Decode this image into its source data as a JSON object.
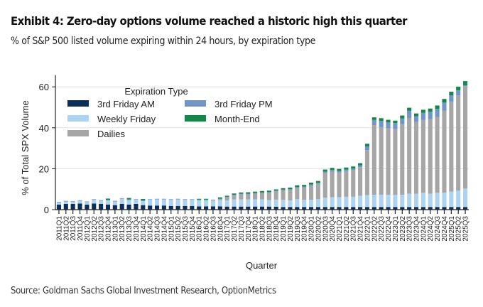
{
  "header": {
    "title": "Exhibit 4: Zero-day options volume reached a historic high this quarter",
    "subtitle": "% of S&P 500 listed volume expiring within 24 hours, by expiration type"
  },
  "footer": {
    "source": "Source: Goldman Sachs Global Investment Research, OptionMetrics"
  },
  "chart_data": {
    "type": "bar",
    "stacked": true,
    "title": "",
    "xlabel": "Quarter",
    "ylabel": "% of Total SPX Volume",
    "ylim": [
      0,
      65
    ],
    "yticks": [
      0,
      20,
      40,
      60
    ],
    "grid": true,
    "legend": {
      "title": "Expiration Type",
      "placement": "top-left"
    },
    "colors": {
      "3rd Friday AM": "#0b2f5b",
      "3rd Friday PM": "#6f96c6",
      "Weekly Friday": "#aed3f0",
      "Dailies": "#a6a6a6",
      "Month-End": "#17864a"
    },
    "categories": [
      "2011Q1",
      "2011Q2",
      "2011Q3",
      "2011Q4",
      "2012Q1",
      "2012Q2",
      "2012Q3",
      "2012Q4",
      "2013Q1",
      "2013Q2",
      "2013Q3",
      "2013Q4",
      "2014Q1",
      "2014Q2",
      "2014Q3",
      "2014Q4",
      "2015Q1",
      "2015Q2",
      "2015Q3",
      "2015Q4",
      "2016Q1",
      "2016Q2",
      "2016Q3",
      "2016Q4",
      "2017Q1",
      "2017Q2",
      "2017Q3",
      "2017Q4",
      "2018Q1",
      "2018Q2",
      "2018Q3",
      "2018Q4",
      "2019Q1",
      "2019Q2",
      "2019Q3",
      "2019Q4",
      "2020Q1",
      "2020Q2",
      "2020Q3",
      "2020Q4",
      "2021Q1",
      "2021Q2",
      "2021Q3",
      "2021Q4",
      "2022Q1",
      "2022Q2",
      "2022Q3",
      "2022Q4",
      "2023Q1",
      "2023Q2",
      "2023Q3",
      "2023Q4",
      "2024Q1",
      "2024Q2",
      "2024Q3",
      "2024Q4",
      "2025Q1",
      "2025Q2",
      "2025Q3"
    ],
    "series": [
      {
        "name": "3rd Friday AM",
        "values": [
          2.5,
          2.8,
          2.8,
          3.0,
          2.5,
          3.0,
          2.8,
          2.5,
          2.2,
          2.8,
          2.5,
          2.8,
          2.2,
          2.0,
          2.0,
          2.0,
          1.8,
          1.8,
          1.8,
          1.8,
          1.6,
          1.6,
          1.6,
          1.6,
          1.5,
          1.5,
          1.5,
          1.5,
          1.5,
          1.5,
          1.5,
          1.4,
          1.3,
          1.3,
          1.3,
          1.3,
          1.3,
          1.3,
          1.3,
          1.3,
          1.3,
          1.3,
          1.3,
          1.3,
          1.3,
          1.3,
          1.3,
          1.3,
          1.3,
          1.3,
          1.3,
          1.3,
          1.3,
          1.3,
          1.3,
          1.3,
          1.3,
          1.3,
          1.3
        ]
      },
      {
        "name": "Weekly Friday",
        "values": [
          1.0,
          1.2,
          1.0,
          1.3,
          1.2,
          1.8,
          1.5,
          2.0,
          1.8,
          2.5,
          2.2,
          2.0,
          2.0,
          2.8,
          3.0,
          3.0,
          3.0,
          3.2,
          3.0,
          3.0,
          3.0,
          3.0,
          2.8,
          3.0,
          3.0,
          3.5,
          3.5,
          3.5,
          3.5,
          3.5,
          3.2,
          3.5,
          3.5,
          3.2,
          3.8,
          3.5,
          3.5,
          3.8,
          4.5,
          4.8,
          4.8,
          5.0,
          5.0,
          5.5,
          5.8,
          6.0,
          6.0,
          6.0,
          6.0,
          6.0,
          6.5,
          6.5,
          7.0,
          6.5,
          7.0,
          7.0,
          7.5,
          8.0,
          9.0
        ]
      },
      {
        "name": "Dailies",
        "values": [
          0.0,
          0.0,
          0.0,
          0.0,
          0.0,
          0.0,
          0.0,
          0.0,
          0.0,
          0.0,
          0.0,
          0.0,
          0.0,
          0.0,
          0.0,
          0.0,
          0.0,
          0.0,
          0.0,
          0.0,
          0.0,
          0.0,
          0.2,
          0.5,
          1.5,
          2.0,
          2.5,
          2.5,
          2.8,
          3.0,
          3.5,
          4.0,
          4.5,
          5.0,
          5.5,
          6.0,
          7.0,
          7.5,
          12.0,
          12.5,
          12.0,
          12.5,
          13.0,
          14.0,
          22.0,
          34.0,
          33.0,
          32.5,
          32.0,
          34.5,
          37.0,
          35.0,
          35.5,
          36.5,
          37.0,
          40.0,
          44.0,
          46.5,
          50.0
        ]
      },
      {
        "name": "3rd Friday PM",
        "values": [
          0.3,
          0.3,
          0.3,
          0.3,
          0.3,
          0.3,
          0.3,
          0.3,
          0.3,
          0.3,
          0.3,
          0.3,
          0.3,
          0.3,
          0.3,
          0.3,
          0.3,
          0.3,
          0.3,
          0.3,
          0.3,
          0.3,
          0.3,
          0.3,
          0.3,
          0.3,
          0.3,
          0.3,
          0.4,
          0.4,
          0.4,
          0.4,
          0.5,
          0.5,
          0.5,
          0.5,
          0.5,
          0.5,
          0.8,
          0.8,
          0.8,
          0.8,
          0.8,
          0.9,
          1.8,
          2.5,
          3.0,
          2.8,
          3.0,
          2.8,
          3.5,
          2.8,
          3.5,
          3.5,
          4.0,
          4.0,
          3.0,
          2.5,
          0.5
        ]
      },
      {
        "name": "Month-End",
        "values": [
          0.0,
          0.0,
          0.0,
          0.0,
          0.0,
          0.0,
          0.0,
          0.6,
          0.0,
          0.0,
          0.7,
          0.0,
          0.7,
          0.0,
          0.0,
          0.0,
          0.0,
          0.0,
          0.0,
          0.0,
          0.4,
          0.4,
          0.0,
          0.6,
          0.5,
          0.6,
          0.6,
          0.7,
          0.6,
          0.7,
          0.7,
          0.6,
          0.7,
          0.8,
          0.8,
          0.8,
          0.9,
          0.9,
          1.0,
          1.0,
          1.0,
          1.0,
          1.0,
          1.0,
          1.3,
          1.3,
          1.4,
          1.3,
          1.2,
          1.4,
          1.5,
          1.4,
          1.5,
          1.6,
          1.6,
          1.8,
          1.8,
          1.8,
          2.0
        ]
      }
    ]
  }
}
